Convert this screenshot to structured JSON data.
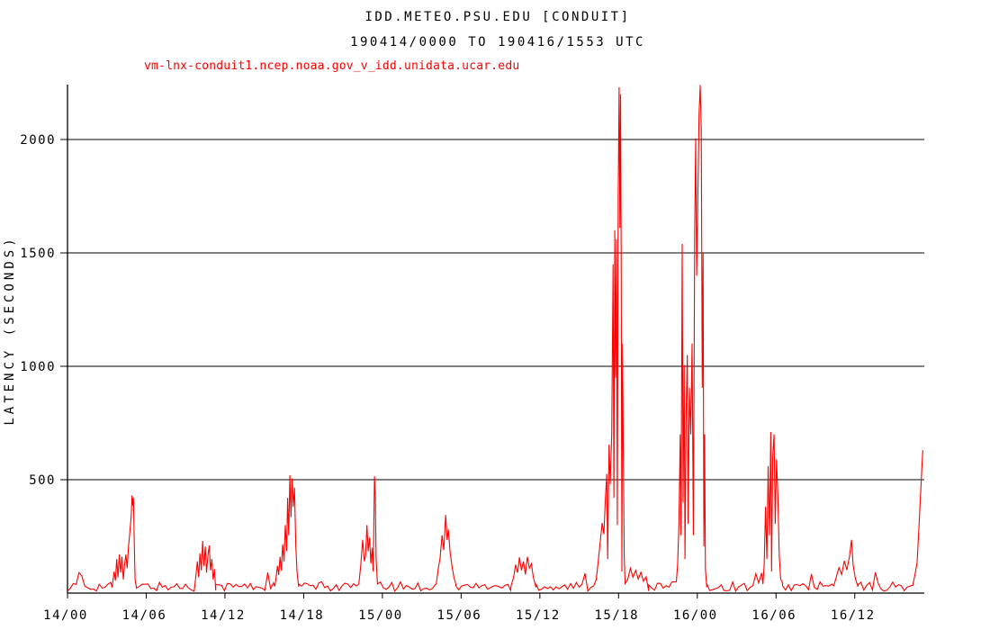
{
  "header": {
    "title": "IDD.METEO.PSU.EDU [CONDUIT]",
    "subtitle": "190414/0000 TO 190416/1553 UTC"
  },
  "legend": {
    "label": "vm-lnx-conduit1.ncep.noaa.gov_v_idd.unidata.ucar.edu",
    "color": "#ff0000"
  },
  "axes": {
    "y_title": "LATENCY (SECONDS)"
  },
  "colors": {
    "series": "#ff0000",
    "axis": "#000000",
    "grid": "#000000",
    "background": "#ffffff"
  },
  "chart_data": {
    "type": "line",
    "title": "IDD.METEO.PSU.EDU [CONDUIT]",
    "subtitle": "190414/0000 TO 190416/1553 UTC",
    "xlabel": "",
    "ylabel": "LATENCY (SECONDS)",
    "x_unit": "hours since 2019-04-14 00:00 UTC",
    "xlim": [
      0,
      65.3
    ],
    "ylim": [
      0,
      2242
    ],
    "grid": "horizontal",
    "legend_position": "top-left",
    "x_ticks": [
      {
        "t": 0,
        "label": "14/00"
      },
      {
        "t": 6,
        "label": "14/06"
      },
      {
        "t": 12,
        "label": "14/12"
      },
      {
        "t": 18,
        "label": "14/18"
      },
      {
        "t": 24,
        "label": "15/00"
      },
      {
        "t": 30,
        "label": "15/06"
      },
      {
        "t": 36,
        "label": "15/12"
      },
      {
        "t": 42,
        "label": "15/18"
      },
      {
        "t": 48,
        "label": "16/00"
      },
      {
        "t": 54,
        "label": "16/06"
      },
      {
        "t": 60,
        "label": "16/12"
      }
    ],
    "y_ticks": [
      {
        "v": 500,
        "label": "500"
      },
      {
        "v": 1000,
        "label": "1000"
      },
      {
        "v": 1500,
        "label": "1500"
      },
      {
        "v": 2000,
        "label": "2000"
      }
    ],
    "series": [
      {
        "name": "vm-lnx-conduit1.ncep.noaa.gov_v_idd.unidata.ucar.edu",
        "color": "#ff0000",
        "baseline_segments": [
          {
            "from": 0,
            "to": 3.4,
            "base": 8,
            "amp": 42
          },
          {
            "from": 5.25,
            "to": 9.7,
            "base": 8,
            "amp": 42
          },
          {
            "from": 11.3,
            "to": 15.8,
            "base": 8,
            "amp": 42
          },
          {
            "from": 17.62,
            "to": 22.2,
            "base": 8,
            "amp": 42
          },
          {
            "from": 23.62,
            "to": 28.1,
            "base": 8,
            "amp": 42
          },
          {
            "from": 29.6,
            "to": 33.8,
            "base": 8,
            "amp": 42
          },
          {
            "from": 35.7,
            "to": 40.3,
            "base": 8,
            "amp": 42
          },
          {
            "from": 44.3,
            "to": 46.4,
            "base": 8,
            "amp": 42
          },
          {
            "from": 48.72,
            "to": 53.0,
            "base": 8,
            "amp": 42
          },
          {
            "from": 54.5,
            "to": 58.4,
            "base": 8,
            "amp": 42
          },
          {
            "from": 60.25,
            "to": 64.45,
            "base": 8,
            "amp": 42
          }
        ],
        "spike_points": [
          [
            3.4,
            25
          ],
          [
            3.55,
            95
          ],
          [
            3.65,
            55
          ],
          [
            3.75,
            150
          ],
          [
            3.85,
            70
          ],
          [
            3.95,
            170
          ],
          [
            4.05,
            90
          ],
          [
            4.15,
            160
          ],
          [
            4.25,
            60
          ],
          [
            4.35,
            125
          ],
          [
            4.45,
            170
          ],
          [
            4.55,
            110
          ],
          [
            4.65,
            205
          ],
          [
            4.75,
            265
          ],
          [
            4.85,
            335
          ],
          [
            4.92,
            430
          ],
          [
            4.98,
            385
          ],
          [
            5.03,
            420
          ],
          [
            5.08,
            240
          ],
          [
            5.15,
            60
          ],
          [
            5.25,
            22
          ],
          [
            9.7,
            30
          ],
          [
            9.8,
            85
          ],
          [
            9.9,
            140
          ],
          [
            10.0,
            70
          ],
          [
            10.1,
            175
          ],
          [
            10.2,
            100
          ],
          [
            10.3,
            230
          ],
          [
            10.4,
            120
          ],
          [
            10.5,
            205
          ],
          [
            10.6,
            90
          ],
          [
            10.7,
            165
          ],
          [
            10.8,
            210
          ],
          [
            10.9,
            100
          ],
          [
            11.0,
            150
          ],
          [
            11.1,
            60
          ],
          [
            11.2,
            105
          ],
          [
            11.3,
            38
          ],
          [
            15.8,
            30
          ],
          [
            15.9,
            70
          ],
          [
            16.0,
            120
          ],
          [
            16.1,
            80
          ],
          [
            16.2,
            160
          ],
          [
            16.3,
            100
          ],
          [
            16.4,
            215
          ],
          [
            16.5,
            140
          ],
          [
            16.6,
            300
          ],
          [
            16.7,
            185
          ],
          [
            16.78,
            420
          ],
          [
            16.86,
            255
          ],
          [
            16.95,
            520
          ],
          [
            17.03,
            335
          ],
          [
            17.12,
            505
          ],
          [
            17.2,
            380
          ],
          [
            17.3,
            465
          ],
          [
            17.4,
            205
          ],
          [
            17.5,
            90
          ],
          [
            17.62,
            40
          ],
          [
            22.2,
            40
          ],
          [
            22.35,
            120
          ],
          [
            22.5,
            235
          ],
          [
            22.62,
            140
          ],
          [
            22.72,
            165
          ],
          [
            22.82,
            300
          ],
          [
            22.92,
            185
          ],
          [
            23.02,
            245
          ],
          [
            23.12,
            130
          ],
          [
            23.22,
            200
          ],
          [
            23.3,
            95
          ],
          [
            23.4,
            515
          ],
          [
            23.46,
            430
          ],
          [
            23.52,
            150
          ],
          [
            23.62,
            40
          ],
          [
            28.1,
            40
          ],
          [
            28.25,
            105
          ],
          [
            28.4,
            155
          ],
          [
            28.55,
            255
          ],
          [
            28.68,
            190
          ],
          [
            28.82,
            345
          ],
          [
            28.93,
            235
          ],
          [
            29.03,
            280
          ],
          [
            29.15,
            185
          ],
          [
            29.3,
            120
          ],
          [
            29.45,
            70
          ],
          [
            29.6,
            32
          ],
          [
            33.8,
            30
          ],
          [
            34.0,
            70
          ],
          [
            34.15,
            125
          ],
          [
            34.3,
            90
          ],
          [
            34.45,
            158
          ],
          [
            34.6,
            100
          ],
          [
            34.75,
            140
          ],
          [
            34.9,
            82
          ],
          [
            35.05,
            160
          ],
          [
            35.2,
            110
          ],
          [
            35.35,
            130
          ],
          [
            35.5,
            72
          ],
          [
            35.7,
            40
          ],
          [
            40.3,
            60
          ],
          [
            40.45,
            140
          ],
          [
            40.6,
            225
          ],
          [
            40.75,
            310
          ],
          [
            40.88,
            260
          ],
          [
            41.0,
            420
          ],
          [
            41.1,
            525
          ],
          [
            41.17,
            150
          ],
          [
            41.27,
            655
          ],
          [
            41.36,
            480
          ],
          [
            41.48,
            700
          ],
          [
            41.58,
            1450
          ],
          [
            41.64,
            420
          ],
          [
            41.71,
            1600
          ],
          [
            41.77,
            950
          ],
          [
            41.84,
            1560
          ],
          [
            41.9,
            300
          ],
          [
            41.97,
            1750
          ],
          [
            42.04,
            2230
          ],
          [
            42.1,
            1610
          ],
          [
            42.15,
            2200
          ],
          [
            42.2,
            1500
          ],
          [
            42.25,
            95
          ],
          [
            42.3,
            1100
          ],
          [
            42.36,
            610
          ],
          [
            42.43,
            155
          ],
          [
            42.5,
            42
          ],
          [
            42.7,
            60
          ],
          [
            42.9,
            110
          ],
          [
            43.1,
            70
          ],
          [
            43.3,
            100
          ],
          [
            43.5,
            62
          ],
          [
            43.7,
            92
          ],
          [
            43.9,
            52
          ],
          [
            44.1,
            72
          ],
          [
            44.3,
            36
          ],
          [
            46.4,
            50
          ],
          [
            46.5,
            125
          ],
          [
            46.6,
            305
          ],
          [
            46.7,
            700
          ],
          [
            46.76,
            255
          ],
          [
            46.85,
            1540
          ],
          [
            46.92,
            400
          ],
          [
            47.0,
            1005
          ],
          [
            47.06,
            150
          ],
          [
            47.15,
            800
          ],
          [
            47.24,
            1050
          ],
          [
            47.3,
            305
          ],
          [
            47.4,
            905
          ],
          [
            47.5,
            700
          ],
          [
            47.6,
            1100
          ],
          [
            47.7,
            255
          ],
          [
            47.8,
            1600
          ],
          [
            47.88,
            2005
          ],
          [
            47.95,
            1400
          ],
          [
            48.04,
            1750
          ],
          [
            48.13,
            2105
          ],
          [
            48.22,
            2240
          ],
          [
            48.3,
            2050
          ],
          [
            48.38,
            905
          ],
          [
            48.44,
            1500
          ],
          [
            48.5,
            205
          ],
          [
            48.56,
            700
          ],
          [
            48.62,
            105
          ],
          [
            48.72,
            42
          ],
          [
            53.0,
            40
          ],
          [
            53.1,
            125
          ],
          [
            53.2,
            380
          ],
          [
            53.3,
            150
          ],
          [
            53.4,
            560
          ],
          [
            53.5,
            255
          ],
          [
            53.6,
            710
          ],
          [
            53.66,
            95
          ],
          [
            53.75,
            600
          ],
          [
            53.85,
            700
          ],
          [
            53.94,
            305
          ],
          [
            54.04,
            590
          ],
          [
            54.14,
            430
          ],
          [
            54.24,
            170
          ],
          [
            54.35,
            62
          ],
          [
            54.5,
            32
          ],
          [
            58.4,
            32
          ],
          [
            58.6,
            72
          ],
          [
            58.8,
            112
          ],
          [
            59.0,
            82
          ],
          [
            59.2,
            142
          ],
          [
            59.4,
            102
          ],
          [
            59.6,
            162
          ],
          [
            59.75,
            235
          ],
          [
            59.88,
            122
          ],
          [
            60.05,
            62
          ],
          [
            60.25,
            36
          ],
          [
            64.45,
            42
          ],
          [
            64.6,
            85
          ],
          [
            64.75,
            135
          ],
          [
            64.9,
            300
          ],
          [
            65.05,
            480
          ],
          [
            65.18,
            630
          ]
        ]
      }
    ]
  }
}
